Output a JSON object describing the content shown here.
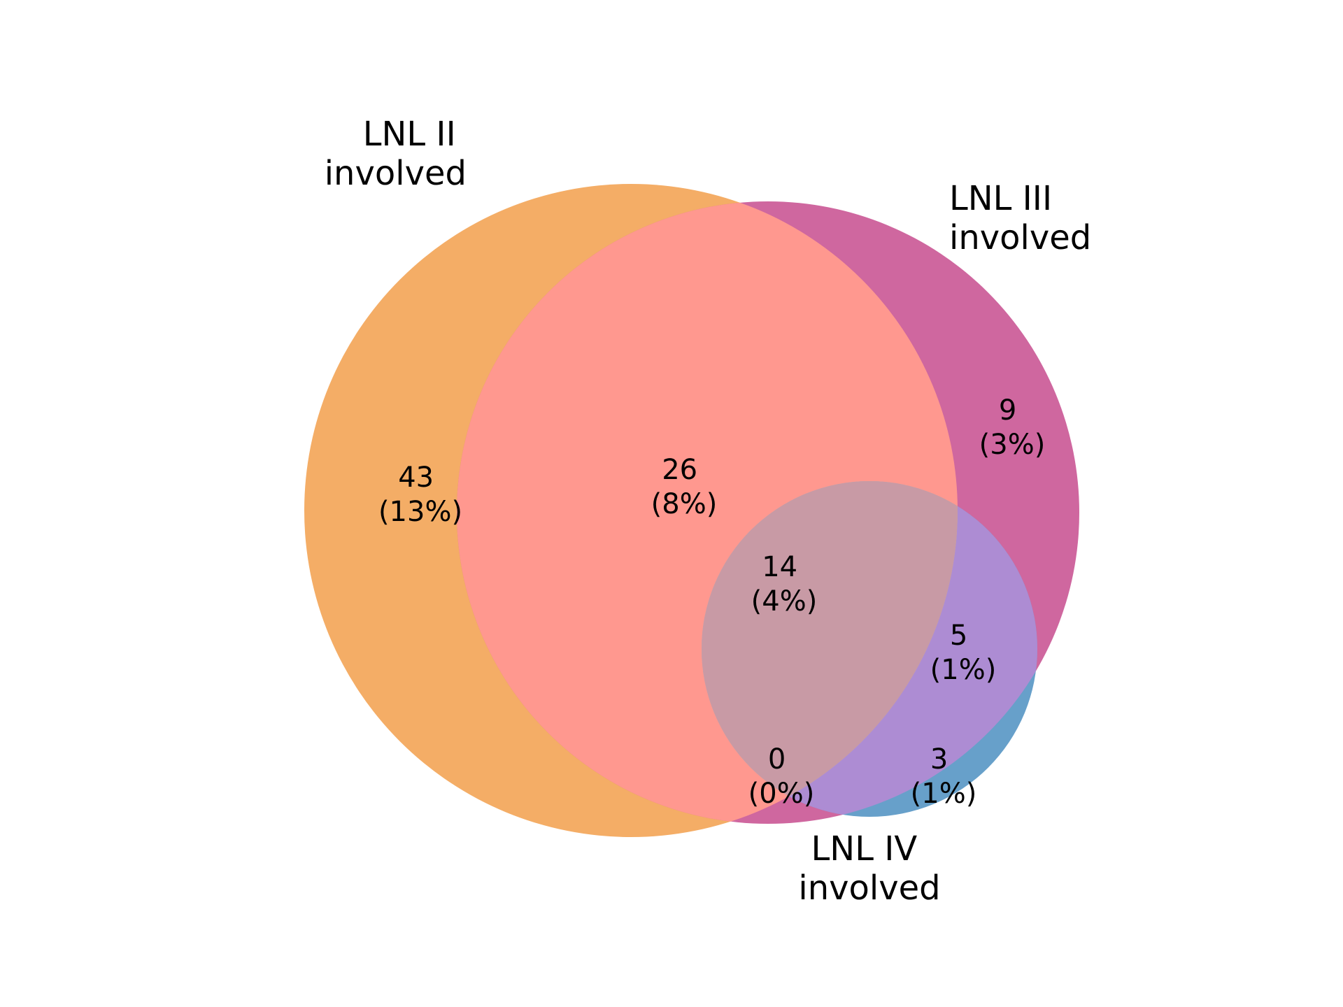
{
  "diagram": {
    "type": "venn3",
    "sets": [
      {
        "id": "lnl2",
        "label_line1": "LNL II",
        "label_line2": "involved",
        "color": "#f4ad66"
      },
      {
        "id": "lnl3",
        "label_line1": "LNL III",
        "label_line2": "involved",
        "color": "#cf679f"
      },
      {
        "id": "lnl4",
        "label_line1": "LNL IV",
        "label_line2": "involved",
        "color": "#67a0ca"
      }
    ],
    "overlap_colors": {
      "lnl2_lnl3": "#ff988f",
      "lnl3_lnl4": "#ad8cd3",
      "lnl2_lnl4": "#cdb898",
      "all": "#c89aa5"
    },
    "regions": [
      {
        "id": "only_lnl2",
        "sets": [
          "LNL II"
        ],
        "count": "43",
        "percent": "(13%)"
      },
      {
        "id": "lnl2_lnl3",
        "sets": [
          "LNL II",
          "LNL III"
        ],
        "count": "26",
        "percent": "(8%)"
      },
      {
        "id": "only_lnl3",
        "sets": [
          "LNL III"
        ],
        "count": "9",
        "percent": "(3%)"
      },
      {
        "id": "all_three",
        "sets": [
          "LNL II",
          "LNL III",
          "LNL IV"
        ],
        "count": "14",
        "percent": "(4%)"
      },
      {
        "id": "lnl3_lnl4",
        "sets": [
          "LNL III",
          "LNL IV"
        ],
        "count": "5",
        "percent": "(1%)"
      },
      {
        "id": "lnl2_lnl4",
        "sets": [
          "LNL II",
          "LNL IV"
        ],
        "count": "0",
        "percent": "(0%)"
      },
      {
        "id": "only_lnl4",
        "sets": [
          "LNL IV"
        ],
        "count": "3",
        "percent": "(1%)"
      }
    ]
  }
}
